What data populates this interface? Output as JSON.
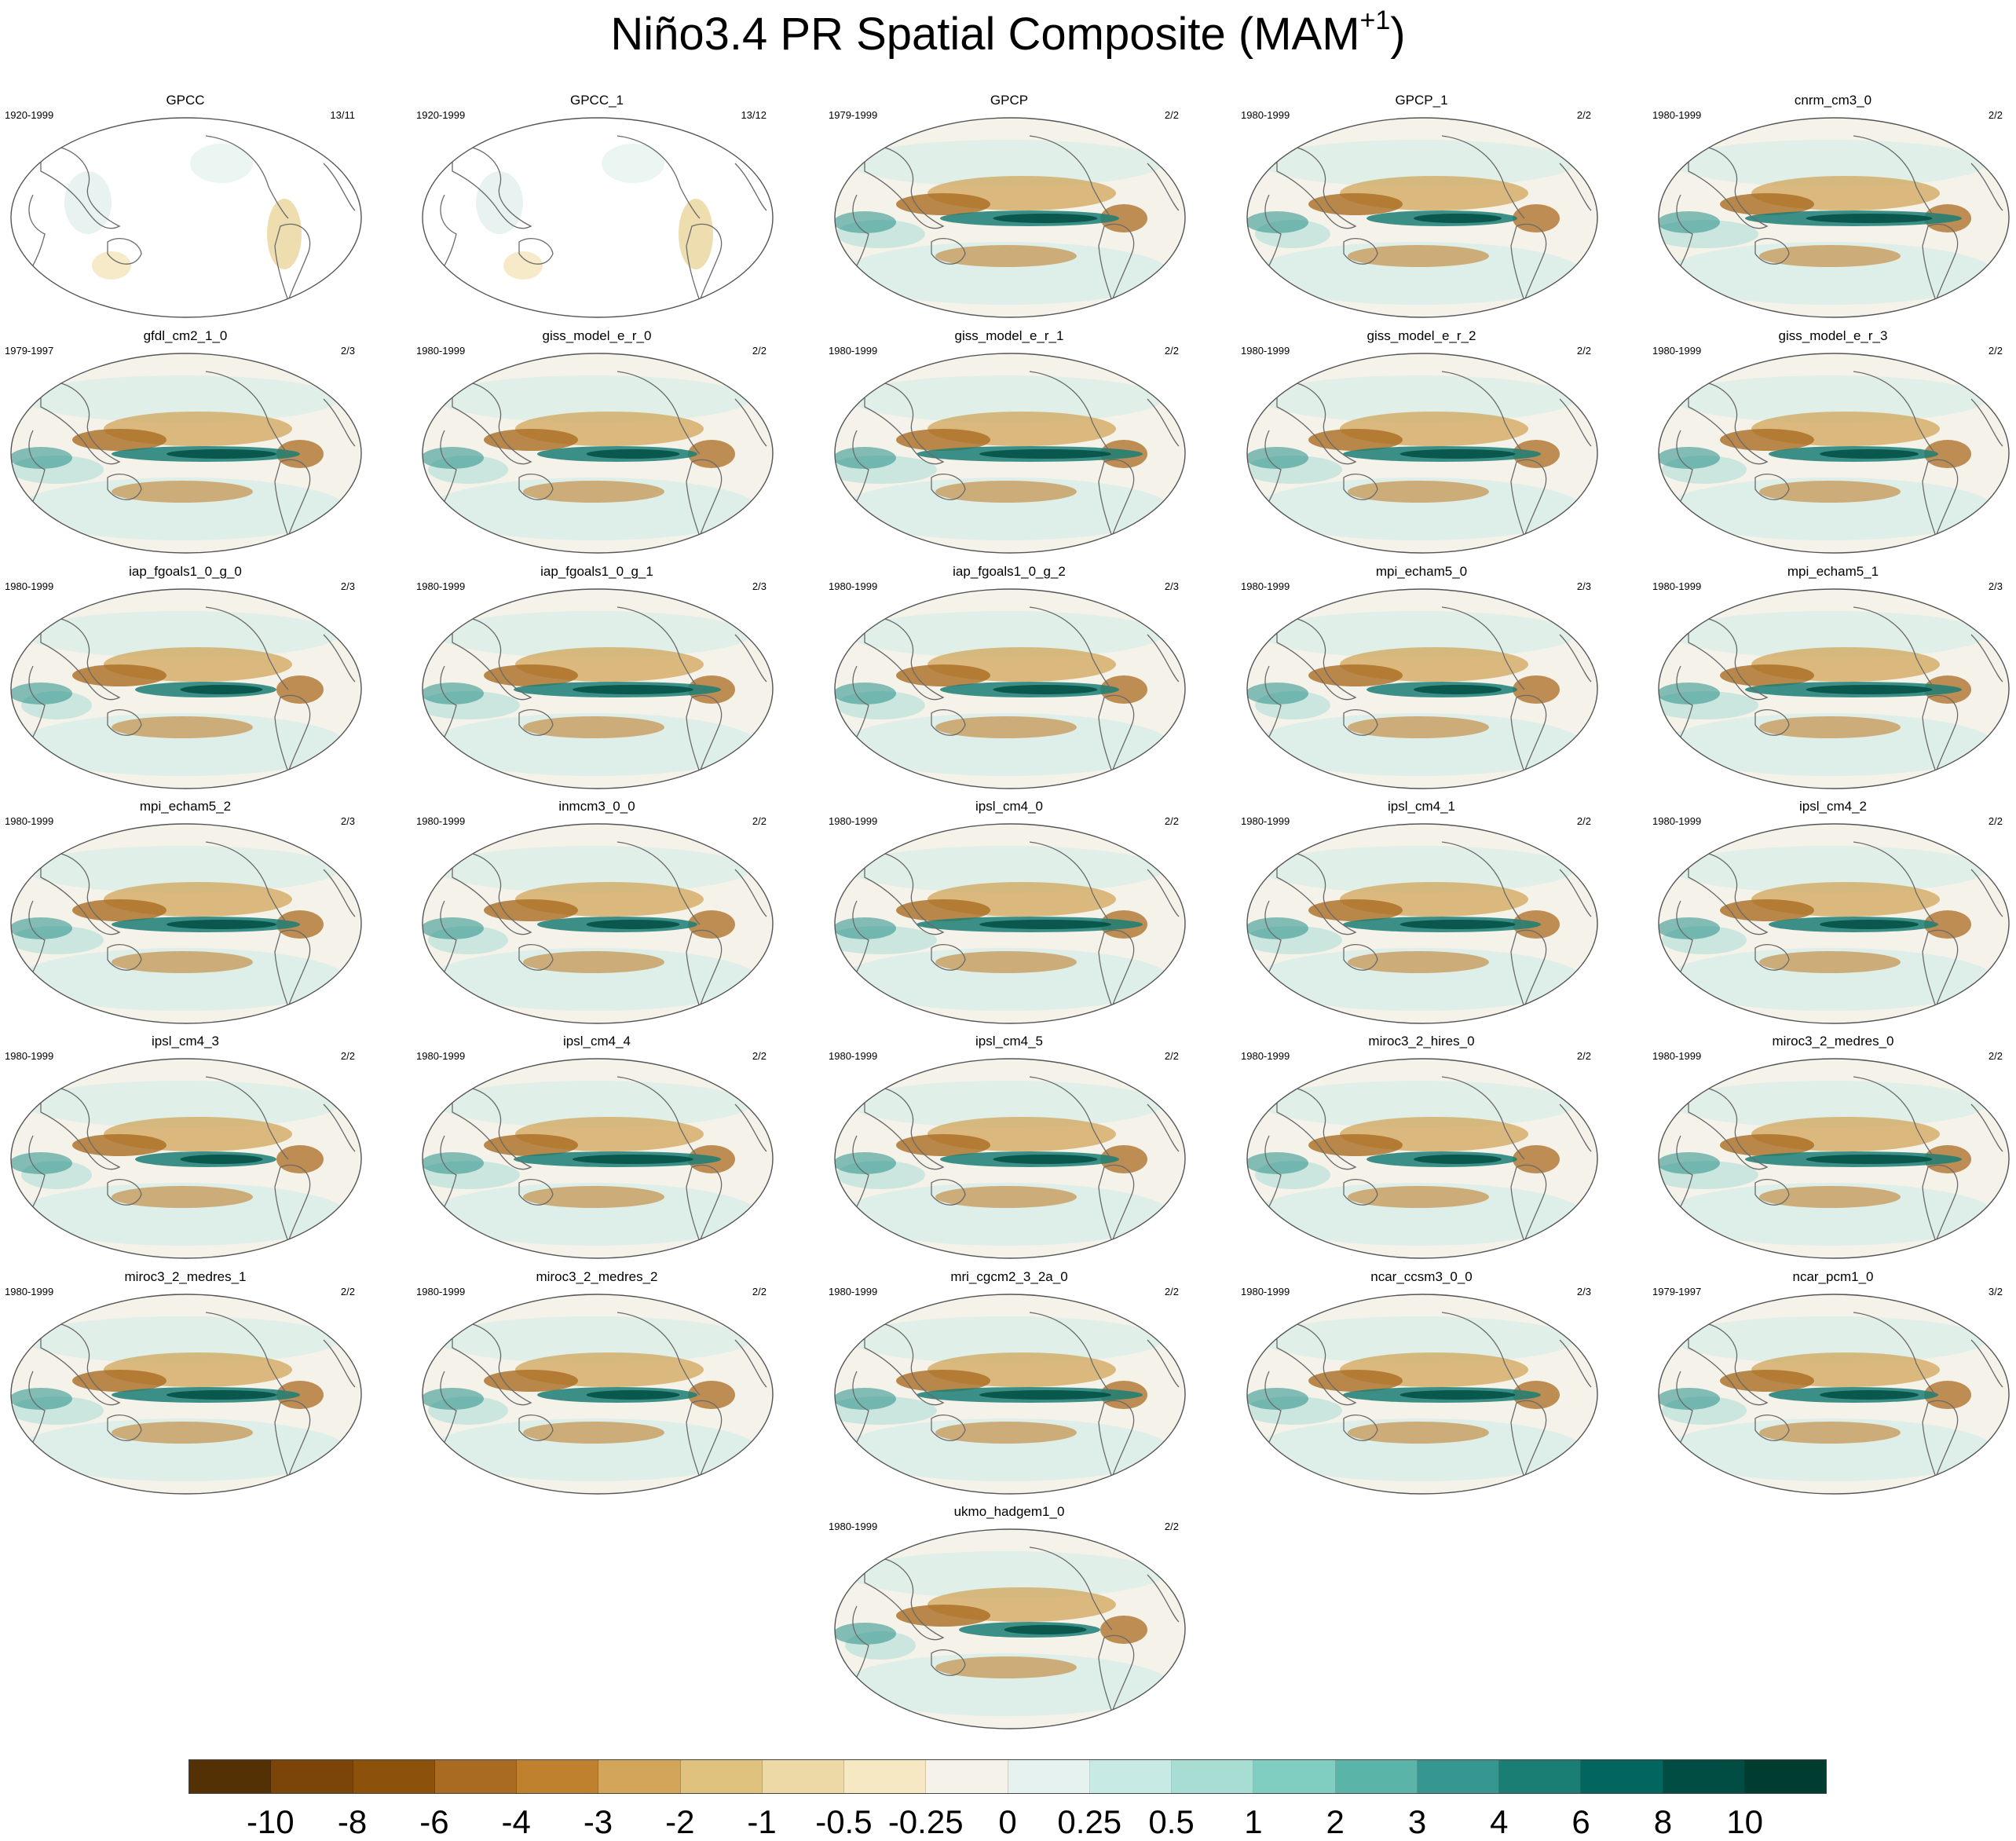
{
  "title": {
    "main": "Niño3.4 PR Spatial Composite (MAM",
    "sup": "+1",
    "end": ")"
  },
  "panels": [
    {
      "name": "GPCC",
      "period": "1920-1999",
      "ratio": "13/11"
    },
    {
      "name": "GPCC_1",
      "period": "1920-1999",
      "ratio": "13/12"
    },
    {
      "name": "GPCP",
      "period": "1979-1999",
      "ratio": "2/2"
    },
    {
      "name": "GPCP_1",
      "period": "1980-1999",
      "ratio": "2/2"
    },
    {
      "name": "cnrm_cm3_0",
      "period": "1980-1999",
      "ratio": "2/2"
    },
    {
      "name": "gfdl_cm2_1_0",
      "period": "1979-1997",
      "ratio": "2/3"
    },
    {
      "name": "giss_model_e_r_0",
      "period": "1980-1999",
      "ratio": "2/2"
    },
    {
      "name": "giss_model_e_r_1",
      "period": "1980-1999",
      "ratio": "2/2"
    },
    {
      "name": "giss_model_e_r_2",
      "period": "1980-1999",
      "ratio": "2/2"
    },
    {
      "name": "giss_model_e_r_3",
      "period": "1980-1999",
      "ratio": "2/2"
    },
    {
      "name": "iap_fgoals1_0_g_0",
      "period": "1980-1999",
      "ratio": "2/3"
    },
    {
      "name": "iap_fgoals1_0_g_1",
      "period": "1980-1999",
      "ratio": "2/3"
    },
    {
      "name": "iap_fgoals1_0_g_2",
      "period": "1980-1999",
      "ratio": "2/3"
    },
    {
      "name": "mpi_echam5_0",
      "period": "1980-1999",
      "ratio": "2/3"
    },
    {
      "name": "mpi_echam5_1",
      "period": "1980-1999",
      "ratio": "2/3"
    },
    {
      "name": "mpi_echam5_2",
      "period": "1980-1999",
      "ratio": "2/3"
    },
    {
      "name": "inmcm3_0_0",
      "period": "1980-1999",
      "ratio": "2/2"
    },
    {
      "name": "ipsl_cm4_0",
      "period": "1980-1999",
      "ratio": "2/2"
    },
    {
      "name": "ipsl_cm4_1",
      "period": "1980-1999",
      "ratio": "2/2"
    },
    {
      "name": "ipsl_cm4_2",
      "period": "1980-1999",
      "ratio": "2/2"
    },
    {
      "name": "ipsl_cm4_3",
      "period": "1980-1999",
      "ratio": "2/2"
    },
    {
      "name": "ipsl_cm4_4",
      "period": "1980-1999",
      "ratio": "2/2"
    },
    {
      "name": "ipsl_cm4_5",
      "period": "1980-1999",
      "ratio": "2/2"
    },
    {
      "name": "miroc3_2_hires_0",
      "period": "1980-1999",
      "ratio": "2/2"
    },
    {
      "name": "miroc3_2_medres_0",
      "period": "1980-1999",
      "ratio": "2/2"
    },
    {
      "name": "miroc3_2_medres_1",
      "period": "1980-1999",
      "ratio": "2/2"
    },
    {
      "name": "miroc3_2_medres_2",
      "period": "1980-1999",
      "ratio": "2/2"
    },
    {
      "name": "mri_cgcm2_3_2a_0",
      "period": "1980-1999",
      "ratio": "2/2"
    },
    {
      "name": "ncar_ccsm3_0_0",
      "period": "1980-1999",
      "ratio": "2/3"
    },
    {
      "name": "ncar_pcm1_0",
      "period": "1979-1997",
      "ratio": "3/2"
    },
    {
      "name": "ukmo_hadgem1_0",
      "period": "1980-1999",
      "ratio": "2/2"
    }
  ],
  "colorbar": {
    "labels": [
      "-10",
      "-8",
      "-6",
      "-4",
      "-3",
      "-2",
      "-1",
      "-0.5",
      "-0.25",
      "0",
      "0.25",
      "0.5",
      "1",
      "2",
      "3",
      "4",
      "6",
      "8",
      "10"
    ],
    "colors": [
      "#543005",
      "#7b4509",
      "#8c510a",
      "#a96b21",
      "#bf812d",
      "#d2a55a",
      "#dfc27d",
      "#ecd9a5",
      "#f6e8c3",
      "#f5f2ea",
      "#e6f2ef",
      "#c7eae5",
      "#a8ddd4",
      "#80cdc1",
      "#5ab4a8",
      "#35978f",
      "#1a7e74",
      "#01665e",
      "#014d43",
      "#003c30"
    ]
  }
}
